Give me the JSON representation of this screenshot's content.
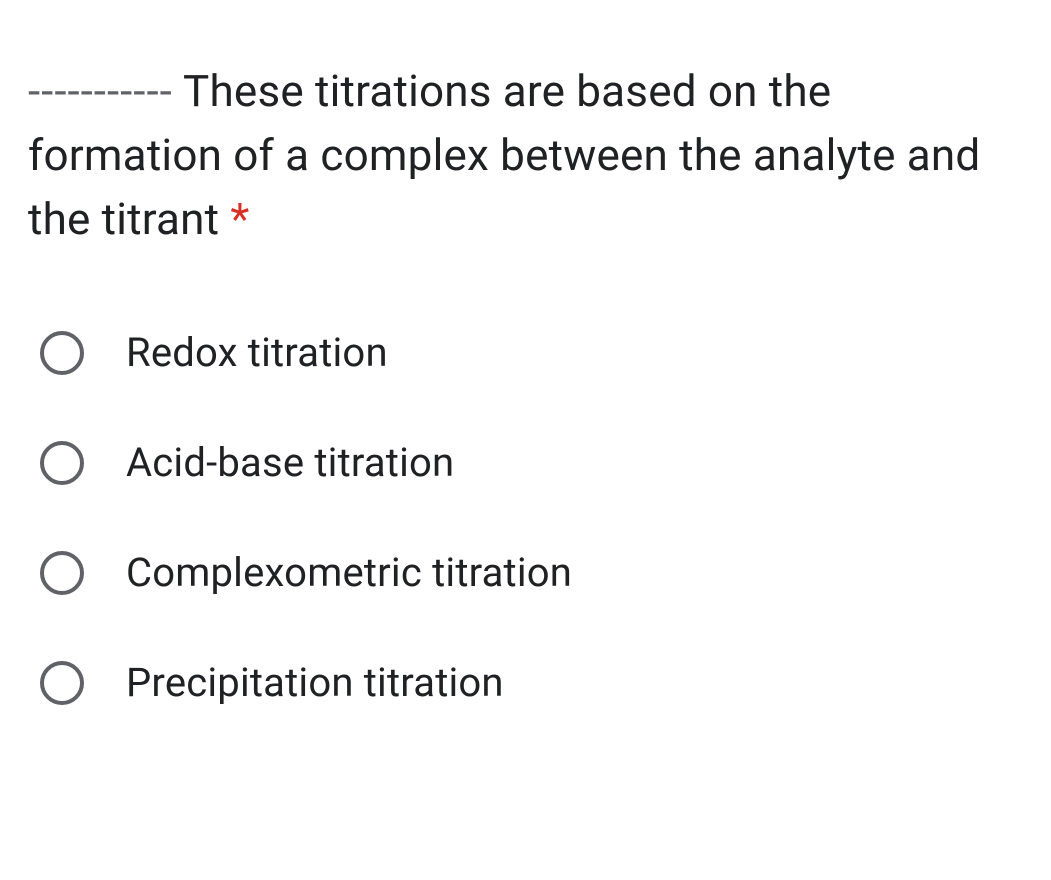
{
  "question": {
    "dashes": "-----------",
    "text": " These titrations are based on the formation of a complex between the analyte and the titrant ",
    "required_marker": "*",
    "required_color": "#d93025"
  },
  "options": [
    {
      "label": "Redox titration"
    },
    {
      "label": "Acid-base titration"
    },
    {
      "label": "Complexometric titration"
    },
    {
      "label": "Precipitation titration"
    }
  ],
  "styles": {
    "text_color": "#202124",
    "radio_border_color": "#5f6368",
    "background_color": "#ffffff",
    "question_fontsize": 44,
    "option_fontsize": 40
  }
}
